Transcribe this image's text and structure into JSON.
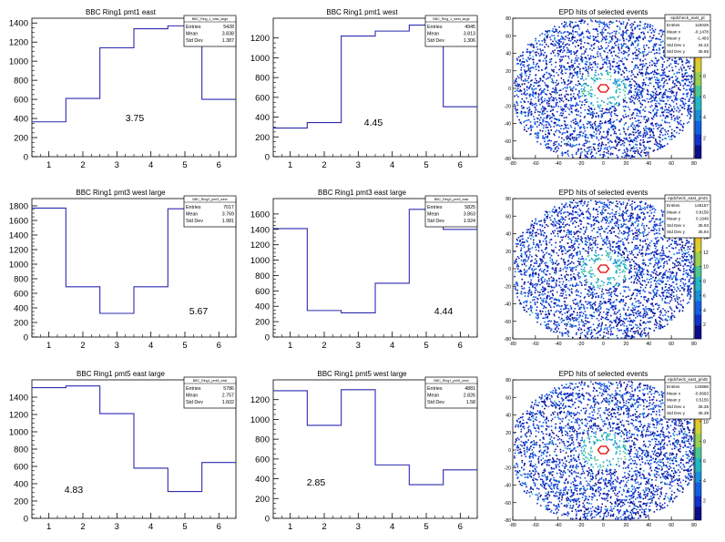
{
  "chart_data": [
    {
      "type": "histogram",
      "title": "BBC Ring1 pmt1 east",
      "bins": [
        1,
        2,
        3,
        4,
        5,
        6
      ],
      "values": [
        365,
        610,
        1140,
        1340,
        1370,
        600
      ],
      "ylim": [
        0,
        1450
      ],
      "yticks": [
        0,
        200,
        400,
        600,
        800,
        1000,
        1200,
        1400
      ],
      "xticks": [
        "1",
        "2",
        "3",
        "4",
        "5",
        "6"
      ],
      "annotation": "3.75",
      "stats": {
        "name": "BBC_Ring_1_east_large",
        "entries": "5428",
        "mean": "3.838",
        "stddev": "1.387"
      }
    },
    {
      "type": "histogram",
      "title": "BBC Ring1 pmt1 west",
      "bins": [
        1,
        2,
        3,
        4,
        5,
        6
      ],
      "values": [
        290,
        345,
        1220,
        1270,
        1330,
        505
      ],
      "ylim": [
        0,
        1400
      ],
      "yticks": [
        0,
        200,
        400,
        600,
        800,
        1000,
        1200
      ],
      "xticks": [
        "1",
        "2",
        "3",
        "4",
        "5",
        "6"
      ],
      "annotation": "4.45",
      "stats": {
        "name": "BBC_Ring_1_west_large",
        "entries": "4945",
        "mean": "3.813",
        "stddev": "1.306"
      }
    },
    {
      "type": "heatmap",
      "title": "EPD hits of selected events",
      "xticks": [
        "-80",
        "-60",
        "-40",
        "-20",
        "0",
        "20",
        "40",
        "60",
        "80"
      ],
      "yticks": [
        "-80",
        "-60",
        "-40",
        "-20",
        "0",
        "20",
        "40",
        "60",
        "80"
      ],
      "zticks": [
        "2",
        "4",
        "6",
        "8",
        "10"
      ],
      "zmax": 10.5,
      "stats": {
        "name": "epdcheck_east_pt",
        "entries": "115029",
        "meanx": "-0.1478",
        "meany": "-1.493",
        "stddevx": "34.22",
        "stddevy": "35.65"
      }
    },
    {
      "type": "histogram",
      "title": "BBC Ring1 pmt3 west large",
      "bins": [
        1,
        2,
        3,
        4,
        5,
        6
      ],
      "values": [
        1770,
        690,
        325,
        690,
        1760,
        1820
      ],
      "ylim": [
        0,
        1900
      ],
      "yticks": [
        0,
        200,
        400,
        600,
        800,
        1000,
        1200,
        1400,
        1600,
        1800
      ],
      "xticks": [
        "1",
        "2",
        "3",
        "4",
        "5",
        "6"
      ],
      "annotation": "5.67",
      "stats": {
        "name": "BBC_Ring3_pmt3_west",
        "entries": "7017",
        "mean": "3.769",
        "stddev": "1.981"
      }
    },
    {
      "type": "histogram",
      "title": "BBC Ring1 pmt3 east large",
      "bins": [
        1,
        2,
        3,
        4,
        5,
        6
      ],
      "values": [
        1410,
        345,
        315,
        700,
        1660,
        1400
      ],
      "ylim": [
        0,
        1800
      ],
      "yticks": [
        0,
        200,
        400,
        600,
        800,
        1000,
        1200,
        1400,
        1600
      ],
      "xticks": [
        "1",
        "2",
        "3",
        "4",
        "5",
        "6"
      ],
      "annotation": "4.44",
      "stats": {
        "name": "BBC_Ring3_pmt3_east",
        "entries": "5825",
        "mean": "3.863",
        "stddev": "1.924"
      }
    },
    {
      "type": "heatmap",
      "title": "EPD hits of selected events",
      "xticks": [
        "-80",
        "-60",
        "-40",
        "-20",
        "0",
        "20",
        "40",
        "60",
        "80"
      ],
      "yticks": [
        "-80",
        "-60",
        "-40",
        "-20",
        "0",
        "20",
        "40",
        "60",
        "80"
      ],
      "zticks": [
        "2",
        "4",
        "6",
        "8",
        "10",
        "12",
        "14"
      ],
      "zmax": 15,
      "stats": {
        "name": "epdcheck_east_pmt3",
        "entries": "145157",
        "meanx": "0.8159",
        "meany": "0.1949",
        "stddevx": "35.93",
        "stddevy": "35.94"
      }
    },
    {
      "type": "histogram",
      "title": "BBC Ring1 pmt5 east large",
      "bins": [
        1,
        2,
        3,
        4,
        5,
        6
      ],
      "values": [
        1510,
        1530,
        1210,
        580,
        310,
        645
      ],
      "ylim": [
        0,
        1600
      ],
      "yticks": [
        0,
        200,
        400,
        600,
        800,
        1000,
        1200,
        1400
      ],
      "xticks": [
        "1",
        "2",
        "3",
        "4",
        "5",
        "6"
      ],
      "annotation": "4.83",
      "stats": {
        "name": "BBC_Ring1_pmt5_east",
        "entries": "5786",
        "mean": "2.757",
        "stddev": "1.602"
      }
    },
    {
      "type": "histogram",
      "title": "BBC Ring1 pmt5 west large",
      "bins": [
        1,
        2,
        3,
        4,
        5,
        6
      ],
      "values": [
        1290,
        940,
        1300,
        540,
        340,
        490
      ],
      "ylim": [
        0,
        1400
      ],
      "yticks": [
        0,
        200,
        400,
        600,
        800,
        1000,
        1200
      ],
      "xticks": [
        "1",
        "2",
        "3",
        "4",
        "5",
        "6"
      ],
      "annotation": "2.85",
      "stats": {
        "name": "BBC_Ring1_pmt5_west",
        "entries": "4881",
        "mean": "2.826",
        "stddev": "1.58"
      }
    },
    {
      "type": "heatmap",
      "title": "EPD hits of selected events",
      "xticks": [
        "-80",
        "-60",
        "-40",
        "-20",
        "0",
        "20",
        "40",
        "60",
        "80"
      ],
      "yticks": [
        "-80",
        "-60",
        "-40",
        "-20",
        "0",
        "20",
        "40",
        "60",
        "80"
      ],
      "zticks": [
        "2",
        "4",
        "6",
        "8",
        "10"
      ],
      "zmax": 11,
      "stats": {
        "name": "epdcheck_east_pmt5",
        "entries": "134866",
        "meanx": "-0.0663",
        "meany": "0.5155",
        "stddevx": "36.35",
        "stddevy": "35.39"
      }
    }
  ],
  "labels": {
    "entries": "Entries",
    "mean": "Mean",
    "stddev": "Std Dev",
    "meanx": "Mean x",
    "meany": "Mean y",
    "stddevx": "Std Dev x",
    "stddevy": "Std Dev y"
  },
  "colors": {
    "line": "#2b2bb0",
    "axis": "#000000",
    "ring": "#e00000",
    "palette": [
      "#0a0a8c",
      "#1030d0",
      "#1060e8",
      "#1890e0",
      "#20b8c8",
      "#48c890",
      "#98d050",
      "#d8d030",
      "#f0c020"
    ]
  }
}
